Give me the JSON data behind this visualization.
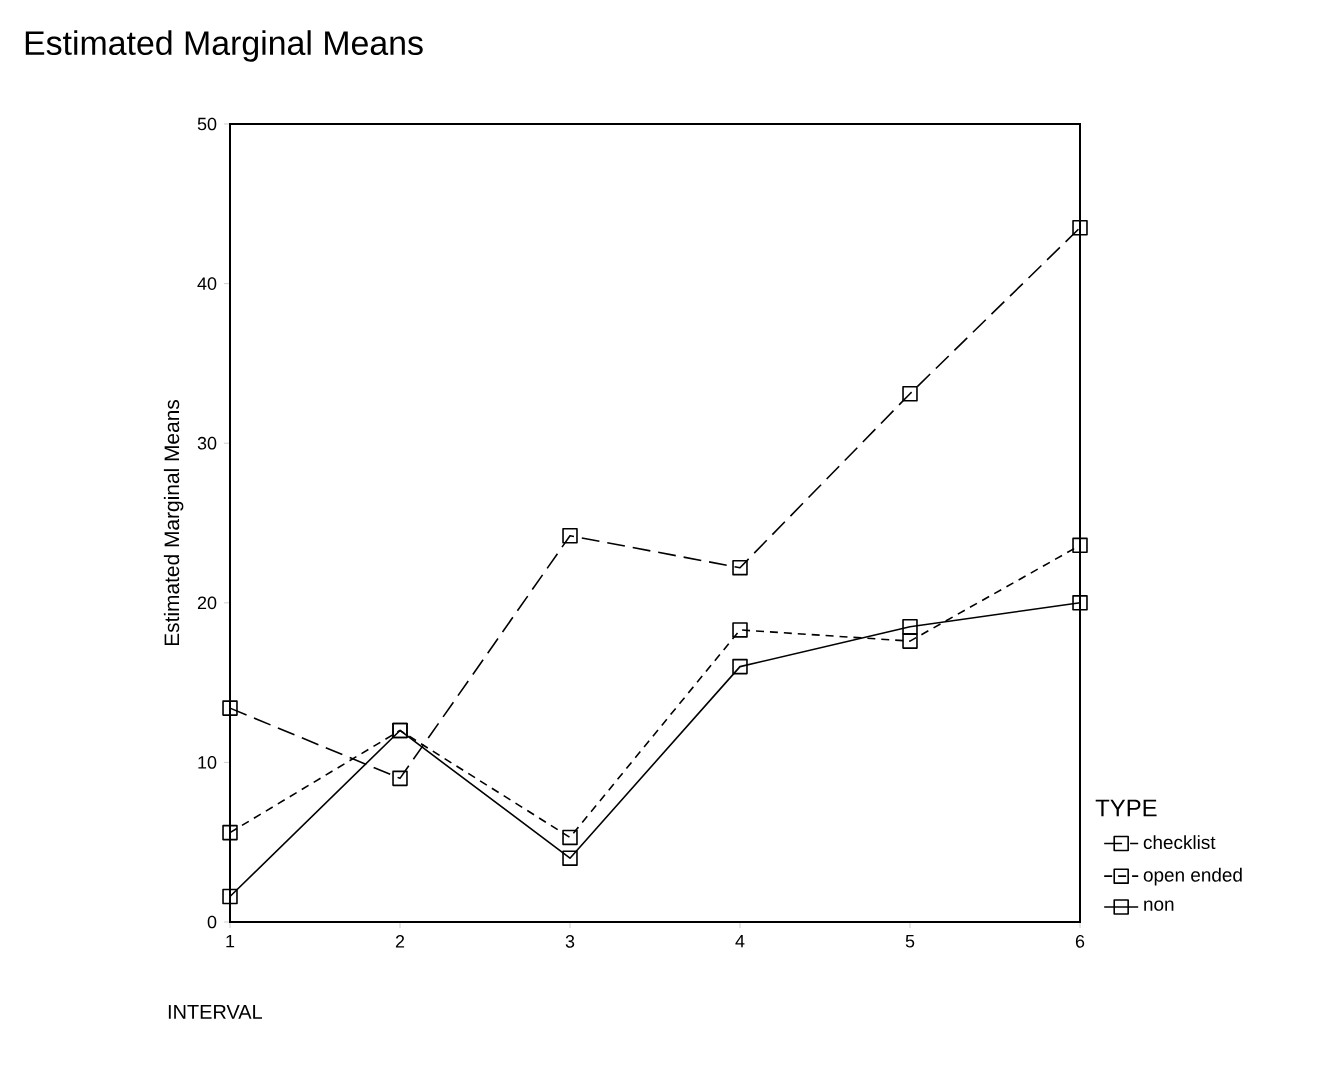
{
  "chart_data": {
    "type": "line",
    "title": "Estimated Marginal Means",
    "xlabel": "INTERVAL",
    "ylabel": "Estimated Marginal Means",
    "legend_title": "TYPE",
    "x": [
      1,
      2,
      3,
      4,
      5,
      6
    ],
    "xlim": [
      1,
      6
    ],
    "xticks": [
      1,
      2,
      3,
      4,
      5,
      6
    ],
    "ylim": [
      0,
      50
    ],
    "yticks": [
      0,
      10,
      20,
      30,
      40,
      50
    ],
    "series": [
      {
        "name": "checklist",
        "color": "#000000",
        "line_style": "dashed",
        "values": [
          13.4,
          9.0,
          24.2,
          22.2,
          33.1,
          43.5
        ]
      },
      {
        "name": "open ended",
        "color": "#000000",
        "line_style": "dotted",
        "values": [
          5.6,
          12.0,
          5.3,
          18.3,
          17.6,
          23.6
        ]
      },
      {
        "name": "non",
        "color": "#000000",
        "line_style": "solid",
        "values": [
          1.6,
          12.0,
          4.0,
          16.0,
          18.5,
          20.0
        ]
      }
    ],
    "marker": "square",
    "legend": "right",
    "grid": false
  }
}
